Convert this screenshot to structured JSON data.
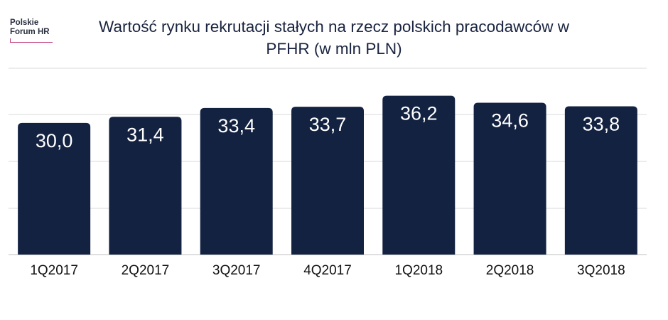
{
  "logo": {
    "line1": "Polskie",
    "line2": "Forum HR"
  },
  "colors": {
    "bar": "#142241",
    "grid": "#d9d9d9",
    "brand_accent": "#c0397a"
  },
  "chart_data": {
    "type": "bar",
    "title": "Wartość rynku rekrutacji stałych na rzecz polskich pracodawców w PFHR (w mln PLN)",
    "categories": [
      "1Q2017",
      "2Q2017",
      "3Q2017",
      "4Q2017",
      "1Q2018",
      "2Q2018",
      "3Q2018"
    ],
    "values": [
      30.0,
      31.4,
      33.4,
      33.7,
      36.2,
      34.6,
      33.8
    ],
    "data_labels": [
      "30,0",
      "31,4",
      "33,4",
      "33,7",
      "36,2",
      "34,6",
      "33,8"
    ],
    "xlabel": "",
    "ylabel": "",
    "ylim": [
      0,
      40
    ],
    "grid": true,
    "legend": "none"
  }
}
